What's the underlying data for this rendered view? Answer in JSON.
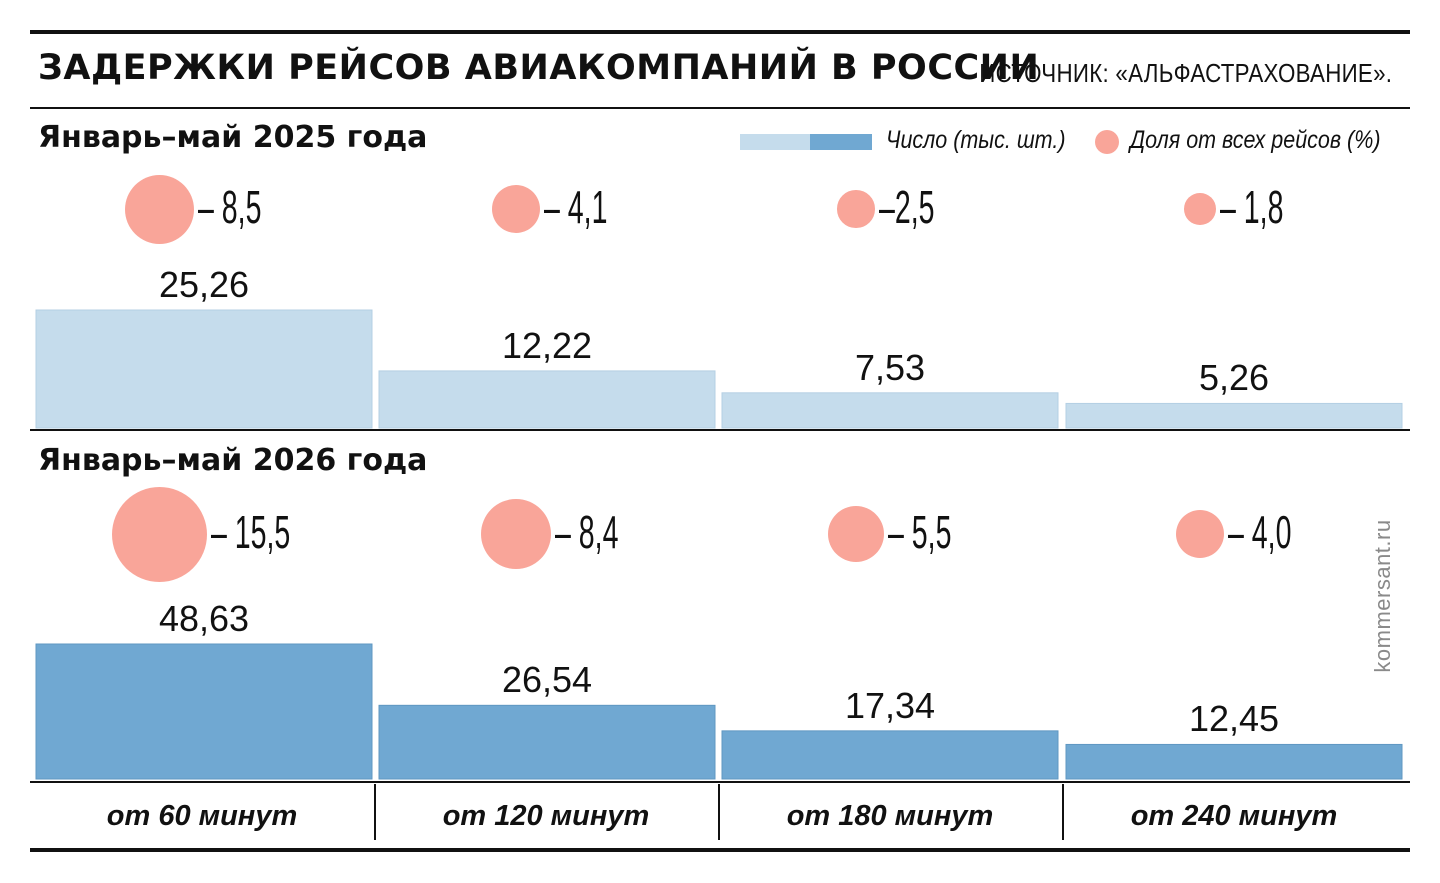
{
  "header": {
    "title": "ЗАДЕРЖКИ РЕЙСОВ АВИАКОМПАНИЙ В РОССИИ",
    "source": "ИСТОЧНИК: «АЛЬФАСТРАХОВАНИЕ»."
  },
  "legend": {
    "count_label": "Число (тыс. шт.)",
    "share_label": "Доля от всех рейсов (%)"
  },
  "watermark": "kommersant.ru",
  "colors": {
    "bar_2025": "#c5dcec",
    "bar_2026": "#70a8d2",
    "bubble": "#f9a599"
  },
  "chart_data": {
    "type": "bar",
    "categories": [
      "от 60 минут",
      "от 120 минут",
      "от 180 минут",
      "от 240 минут"
    ],
    "series": [
      {
        "name": "Январь–май 2025 года",
        "values": [
          25.26,
          12.22,
          7.53,
          5.26
        ],
        "value_labels": [
          "25,26",
          "12,22",
          "7,53",
          "5,26"
        ],
        "share": [
          8.5,
          4.1,
          2.5,
          1.8
        ],
        "share_labels": [
          "– 8,5",
          "– 4,1",
          "–2,5",
          "– 1,8"
        ]
      },
      {
        "name": "Январь–май 2026 года",
        "values": [
          48.63,
          26.54,
          17.34,
          12.45
        ],
        "value_labels": [
          "48,63",
          "26,54",
          "17,34",
          "12,45"
        ],
        "share": [
          15.5,
          8.4,
          5.5,
          4.0
        ],
        "share_labels": [
          "– 15,5",
          "– 8,4",
          "– 5,5",
          "– 4,0"
        ]
      }
    ],
    "value_legend": "Число (тыс. шт.)",
    "share_legend": "Доля от всех рейсов (%)"
  }
}
